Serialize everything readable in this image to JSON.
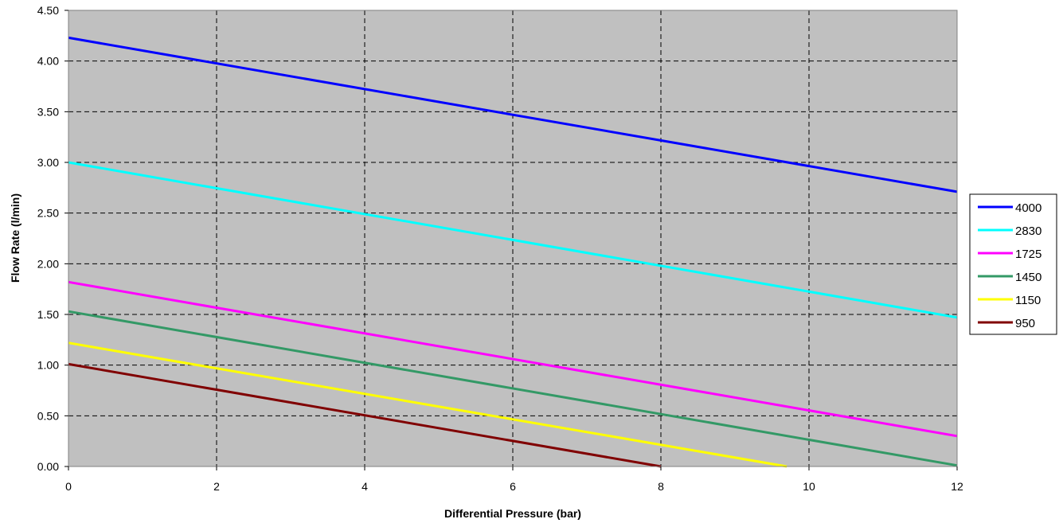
{
  "chart_data": {
    "type": "line",
    "title": "",
    "xlabel": "Differential Pressure (bar)",
    "ylabel": "Flow Rate (l/min)",
    "xlim": [
      0,
      12
    ],
    "ylim": [
      0,
      4.5
    ],
    "x_ticks": [
      "0",
      "2",
      "4",
      "6",
      "8",
      "10",
      "12"
    ],
    "y_ticks": [
      "0.00",
      "0.50",
      "1.00",
      "1.50",
      "2.00",
      "2.50",
      "3.00",
      "3.50",
      "4.00",
      "4.50"
    ],
    "grid": true,
    "plot_background": "#C0C0C0",
    "legend_position": "right",
    "series": [
      {
        "name": "4000",
        "color": "#0000FF",
        "points": [
          [
            0,
            4.23
          ],
          [
            12,
            2.71
          ]
        ]
      },
      {
        "name": "2830",
        "color": "#00FFFF",
        "points": [
          [
            0,
            3.0
          ],
          [
            12,
            1.47
          ]
        ]
      },
      {
        "name": "1725",
        "color": "#FF00FF",
        "points": [
          [
            0,
            1.82
          ],
          [
            12,
            0.3
          ]
        ]
      },
      {
        "name": "1450",
        "color": "#339966",
        "points": [
          [
            0,
            1.53
          ],
          [
            12,
            0.01
          ]
        ]
      },
      {
        "name": "1150",
        "color": "#FFFF00",
        "points": [
          [
            0,
            1.22
          ],
          [
            9.7,
            0.0
          ]
        ]
      },
      {
        "name": "950",
        "color": "#800000",
        "points": [
          [
            0,
            1.01
          ],
          [
            8.0,
            0.0
          ]
        ]
      }
    ]
  }
}
